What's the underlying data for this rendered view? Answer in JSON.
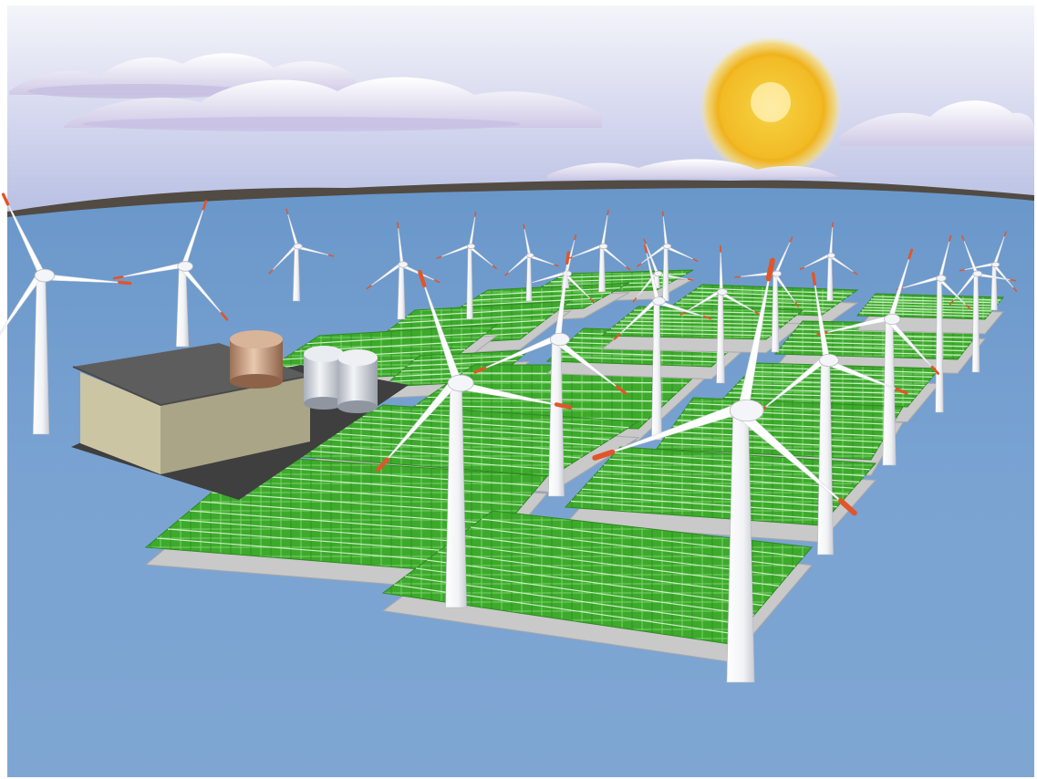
{
  "scene": {
    "subject": "offshore-wind-and-floating-solar-farm",
    "colors": {
      "sky_top": "#eef0f7",
      "sky_bottom": "#b9c0e2",
      "sea": "#6e9bcc",
      "sea_light": "#8fb0d8",
      "land": "#4e4a45",
      "cloud": "#ffffff",
      "cloud_shadow": "#c9c3e4",
      "sun": "#f4c42c",
      "sun_glow": "#f7e7a2",
      "panel": "#3faa2e",
      "panel_dark": "#2f8a22",
      "float": "#c9c9c9",
      "turbine": "#ffffff",
      "turbine_shade": "#d5d8de",
      "blade_tip": "#e0562a",
      "building_wall": "#c8c3a4",
      "building_wall_dark": "#a9a486",
      "building_roof": "#5a5a5a",
      "tank_copper": "#c79a7a",
      "tank_silver": "#d9dde3"
    },
    "elements": {
      "turbine_icon": "wind-turbine-icon",
      "panel_icon": "floating-solar-array-icon",
      "tank_icon": "storage-tank-icon",
      "building_icon": "power-station-icon",
      "sun_icon": "sun-icon",
      "cloud_icon": "cloud-icon"
    }
  }
}
